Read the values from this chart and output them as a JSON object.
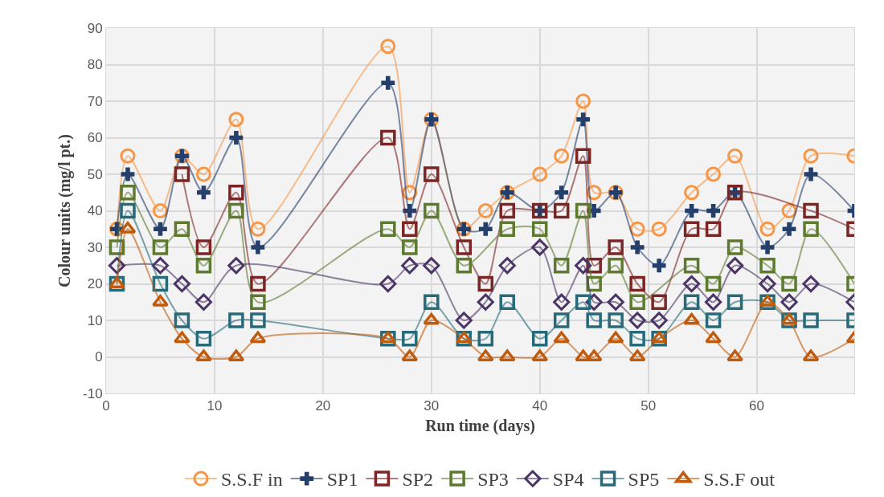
{
  "chart_data": {
    "type": "line",
    "xlabel": "Run time (days)",
    "ylabel": "Colour units (mg/l pt.)",
    "x": [
      1,
      2,
      5,
      7,
      9,
      12,
      14,
      26,
      28,
      30,
      33,
      35,
      37,
      40,
      42,
      44,
      45,
      47,
      49,
      51,
      54,
      56,
      58,
      61,
      63,
      65,
      69
    ],
    "xlim": [
      0,
      69
    ],
    "xticks": [
      0,
      10,
      20,
      30,
      40,
      50,
      60
    ],
    "ylim": [
      -10,
      90
    ],
    "yticks": [
      -10,
      0,
      10,
      20,
      30,
      40,
      50,
      60,
      70,
      80,
      90
    ],
    "grid": true,
    "legend": "bottom",
    "line_style": "solid",
    "series": [
      {
        "name": "S.S.F in",
        "color": "#f79646",
        "marker": "circle",
        "values": [
          35,
          55,
          40,
          55,
          50,
          65,
          35,
          85,
          45,
          65,
          35,
          40,
          45,
          50,
          55,
          70,
          45,
          45,
          35,
          35,
          45,
          50,
          55,
          35,
          40,
          55,
          55
        ]
      },
      {
        "name": "SP1",
        "color": "#243f6b",
        "marker": "cross",
        "values": [
          35,
          50,
          35,
          55,
          45,
          60,
          30,
          75,
          40,
          65,
          35,
          35,
          45,
          40,
          45,
          65,
          40,
          45,
          30,
          25,
          40,
          40,
          45,
          30,
          35,
          50,
          40
        ]
      },
      {
        "name": "SP2",
        "color": "#7b2525",
        "marker": "square",
        "values": [
          null,
          null,
          null,
          50,
          30,
          45,
          20,
          60,
          35,
          50,
          30,
          20,
          40,
          40,
          40,
          55,
          25,
          30,
          20,
          15,
          35,
          35,
          45,
          null,
          null,
          40,
          35
        ]
      },
      {
        "name": "SP3",
        "color": "#5e7a2e",
        "marker": "square",
        "values": [
          30,
          45,
          30,
          35,
          25,
          40,
          15,
          35,
          30,
          40,
          25,
          null,
          35,
          35,
          25,
          40,
          20,
          25,
          15,
          null,
          25,
          20,
          30,
          25,
          20,
          35,
          20
        ]
      },
      {
        "name": "SP4",
        "color": "#4b3566",
        "marker": "diamond",
        "values": [
          25,
          null,
          25,
          20,
          15,
          25,
          null,
          20,
          25,
          25,
          10,
          15,
          25,
          30,
          15,
          25,
          15,
          15,
          10,
          10,
          20,
          15,
          25,
          20,
          15,
          20,
          15
        ]
      },
      {
        "name": "SP5",
        "color": "#276b7a",
        "marker": "square",
        "values": [
          20,
          40,
          20,
          10,
          5,
          10,
          10,
          5,
          5,
          15,
          5,
          5,
          15,
          5,
          10,
          15,
          10,
          10,
          5,
          5,
          15,
          10,
          15,
          15,
          10,
          10,
          10
        ]
      },
      {
        "name": "S.S.F out",
        "color": "#c05a0c",
        "marker": "triangle",
        "values": [
          20,
          35,
          15,
          5,
          0,
          0,
          5,
          5,
          0,
          10,
          5,
          0,
          0,
          0,
          5,
          0,
          0,
          5,
          0,
          5,
          10,
          5,
          0,
          15,
          10,
          0,
          5
        ]
      }
    ]
  }
}
